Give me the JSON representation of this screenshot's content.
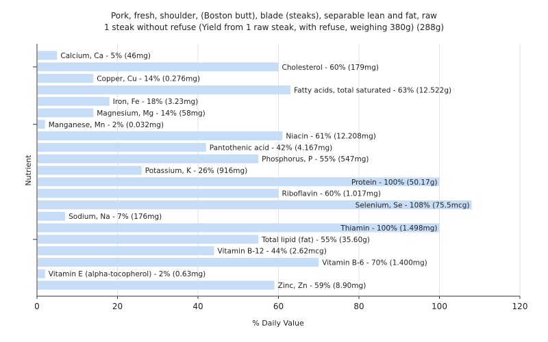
{
  "chart_data": {
    "type": "bar",
    "orientation": "horizontal",
    "title": "Pork, fresh, shoulder, (Boston butt), blade (steaks), separable lean and fat, raw",
    "subtitle": "1 steak without refuse (Yield from 1 raw steak, with refuse, weighing 380g) (288g)",
    "xlabel": "% Daily Value",
    "ylabel": "Nutrient",
    "xlim": [
      0,
      120
    ],
    "xticks": [
      0,
      20,
      40,
      60,
      80,
      100,
      120
    ],
    "grid": true,
    "bar_color": "#c6dcf7",
    "categories": [
      "Calcium, Ca",
      "Cholesterol",
      "Copper, Cu",
      "Fatty acids, total saturated",
      "Iron, Fe",
      "Magnesium, Mg",
      "Manganese, Mn",
      "Niacin",
      "Pantothenic acid",
      "Phosphorus, P",
      "Potassium, K",
      "Protein",
      "Riboflavin",
      "Selenium, Se",
      "Sodium, Na",
      "Thiamin",
      "Total lipid (fat)",
      "Vitamin B-12",
      "Vitamin B-6",
      "Vitamin E (alpha-tocopherol)",
      "Zinc, Zn"
    ],
    "values": [
      5,
      60,
      14,
      63,
      18,
      14,
      2,
      61,
      42,
      55,
      26,
      100,
      60,
      108,
      7,
      100,
      55,
      44,
      70,
      2,
      59
    ],
    "labels": [
      "Calcium, Ca - 5% (46mg)",
      "Cholesterol - 60% (179mg)",
      "Copper, Cu - 14% (0.276mg)",
      "Fatty acids, total saturated - 63% (12.522g)",
      "Iron, Fe - 18% (3.23mg)",
      "Magnesium, Mg - 14% (58mg)",
      "Manganese, Mn - 2% (0.032mg)",
      "Niacin - 61% (12.208mg)",
      "Pantothenic acid - 42% (4.167mg)",
      "Phosphorus, P - 55% (547mg)",
      "Potassium, K - 26% (916mg)",
      "Protein - 100% (50.17g)",
      "Riboflavin - 60% (1.017mg)",
      "Selenium, Se - 108% (75.5mcg)",
      "Sodium, Na - 7% (176mg)",
      "Thiamin - 100% (1.498mg)",
      "Total lipid (fat) - 55% (35.60g)",
      "Vitamin B-12 - 44% (2.62mcg)",
      "Vitamin B-6 - 70% (1.400mg)",
      "Vitamin E (alpha-tocopherol) - 2% (0.63mg)",
      "Zinc, Zn - 59% (8.90mg)"
    ]
  }
}
